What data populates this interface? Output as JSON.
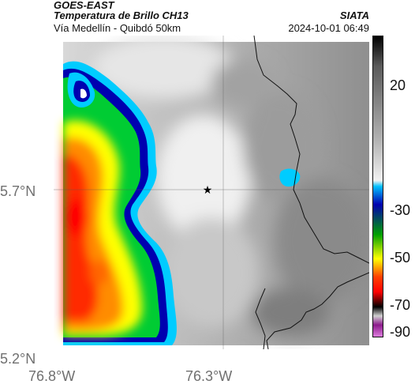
{
  "header": {
    "source": "GOES-EAST",
    "product": "Temperatura de Brillo CH13",
    "region": "Vía Medellín - Quibdó 50km",
    "agency": "SIATA",
    "datetime": "2024-10-01 06:49"
  },
  "axes": {
    "lat_labels": [
      "5.7°N",
      "5.2°N"
    ],
    "lon_labels": [
      "76.8°W",
      "76.3°W"
    ]
  },
  "colorbar": {
    "tick_labels": [
      "20",
      "-30",
      "-50",
      "-70",
      "-90"
    ],
    "stops": [
      "#000000",
      "#5a5a5a",
      "#b4b4b4",
      "#f2f2f2",
      "#00c0ff",
      "#0000b0",
      "#00a000",
      "#ffff00",
      "#ff4000",
      "#ff0000",
      "#000000",
      "#d0d0d0",
      "#8b1a8b",
      "#e080e0"
    ]
  },
  "marker": {
    "icon": "star-icon"
  },
  "colors": {
    "cloud_warm": "#ff2a00",
    "cloud_mid": "#ffff00",
    "cloud_cool": "#00cc33",
    "cloud_edge": "#0000b0",
    "cloud_rim": "#00ccff",
    "clear_sky": "#8a8a8a"
  }
}
